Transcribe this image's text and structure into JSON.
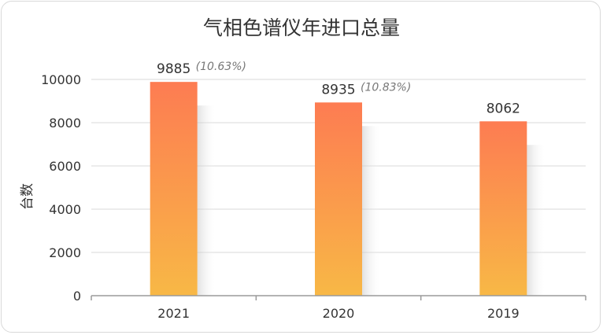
{
  "chart_data": {
    "type": "bar",
    "title": "气相色谱仪年进口总量",
    "ylabel": "台数",
    "xlabel": "",
    "categories": [
      "2021",
      "2020",
      "2019"
    ],
    "values": [
      9885,
      8935,
      8062
    ],
    "annotations": [
      "(10.63%)",
      "(10.83%)",
      ""
    ],
    "ylim": [
      0,
      10000
    ],
    "yticks": [
      0,
      2000,
      4000,
      6000,
      8000,
      10000
    ],
    "grid": true,
    "legend": "none",
    "colors": {
      "bar_top": "#fd7c52",
      "bar_bottom": "#f8b846",
      "grid": "#d9d9d9",
      "axis": "#9a9a9a"
    }
  }
}
